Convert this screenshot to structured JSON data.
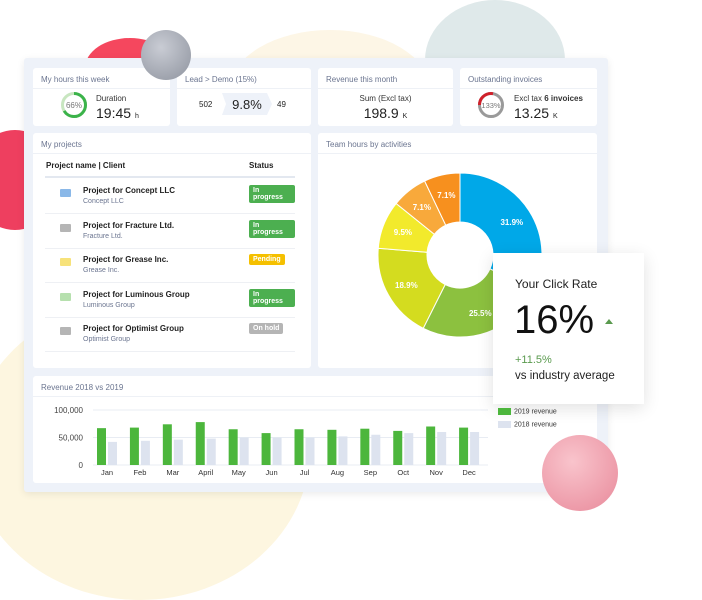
{
  "kpis": {
    "hours": {
      "title": "My hours this week",
      "pct": "66%",
      "pct_value": 66,
      "label": "Duration",
      "value": "19:45",
      "unit": "h"
    },
    "lead": {
      "title": "Lead > Demo (15%)",
      "left": "502",
      "value": "9.8%",
      "right": "49"
    },
    "revenue": {
      "title": "Revenue this month",
      "label": "Sum (Excl tax)",
      "value": "198.9",
      "unit": "K"
    },
    "invoices": {
      "title": "Outstanding invoices",
      "pct": "133%",
      "label_prefix": "Excl tax",
      "label_bold": "6 invoices",
      "value": "13.25",
      "unit": "K"
    }
  },
  "projects": {
    "title": "My projects",
    "col_name": "Project name | Client",
    "col_status": "Status",
    "rows": [
      {
        "name": "Project for Concept LLC",
        "client": "Concept LLC",
        "status": "In progress",
        "icon_color": "#8ab8e8",
        "status_color": "#4caf50"
      },
      {
        "name": "Project for Fracture Ltd.",
        "client": "Fracture Ltd.",
        "status": "In progress",
        "icon_color": "#b5b5b5",
        "status_color": "#4caf50"
      },
      {
        "name": "Project for Grease Inc.",
        "client": "Grease Inc.",
        "status": "Pending",
        "icon_color": "#f7e27a",
        "status_color": "#f5c000"
      },
      {
        "name": "Project for Luminous Group",
        "client": "Luminous Group",
        "status": "In progress",
        "icon_color": "#b6e0ae",
        "status_color": "#4caf50"
      },
      {
        "name": "Project for Optimist Group",
        "client": "Optimist Group",
        "status": "On hold",
        "icon_color": "#b5b5b5",
        "status_color": "#b5b5b5"
      }
    ]
  },
  "click_rate": {
    "title": "Your Click Rate",
    "value": "16%",
    "change": "+11.5%",
    "caption": "vs industry average"
  },
  "chart_data": [
    {
      "type": "pie",
      "title": "Team hours by activities",
      "donut": true,
      "values": [
        31.9,
        25.5,
        18.9,
        9.5,
        7.1,
        7.1
      ],
      "labels": [
        "31.9%",
        "25.5%",
        "18.9%",
        "9.5%",
        "7.1%",
        "7.1%"
      ],
      "colors": [
        "#00a8e8",
        "#8cc13f",
        "#d4dc1f",
        "#f2ea2c",
        "#f8a93b",
        "#f7901e"
      ]
    },
    {
      "type": "bar",
      "title": "Revenue 2018 vs 2019",
      "categories": [
        "Jan",
        "Feb",
        "Mar",
        "April",
        "May",
        "Jun",
        "Jul",
        "Aug",
        "Sep",
        "Oct",
        "Nov",
        "Dec"
      ],
      "yticks": [
        "0",
        "50,000",
        "100,000"
      ],
      "ylim": [
        0,
        100000
      ],
      "grid": true,
      "legend": "right",
      "series": [
        {
          "name": "2019 revenue",
          "color": "#4cb63c",
          "values": [
            67000,
            68000,
            74000,
            78000,
            65000,
            58000,
            65000,
            64000,
            66000,
            62000,
            70000,
            68000
          ]
        },
        {
          "name": "2018 revenue",
          "color": "#dde3ef",
          "values": [
            42000,
            44000,
            46000,
            48000,
            50000,
            50000,
            50000,
            52000,
            55000,
            58000,
            60000,
            60000
          ]
        }
      ]
    }
  ]
}
